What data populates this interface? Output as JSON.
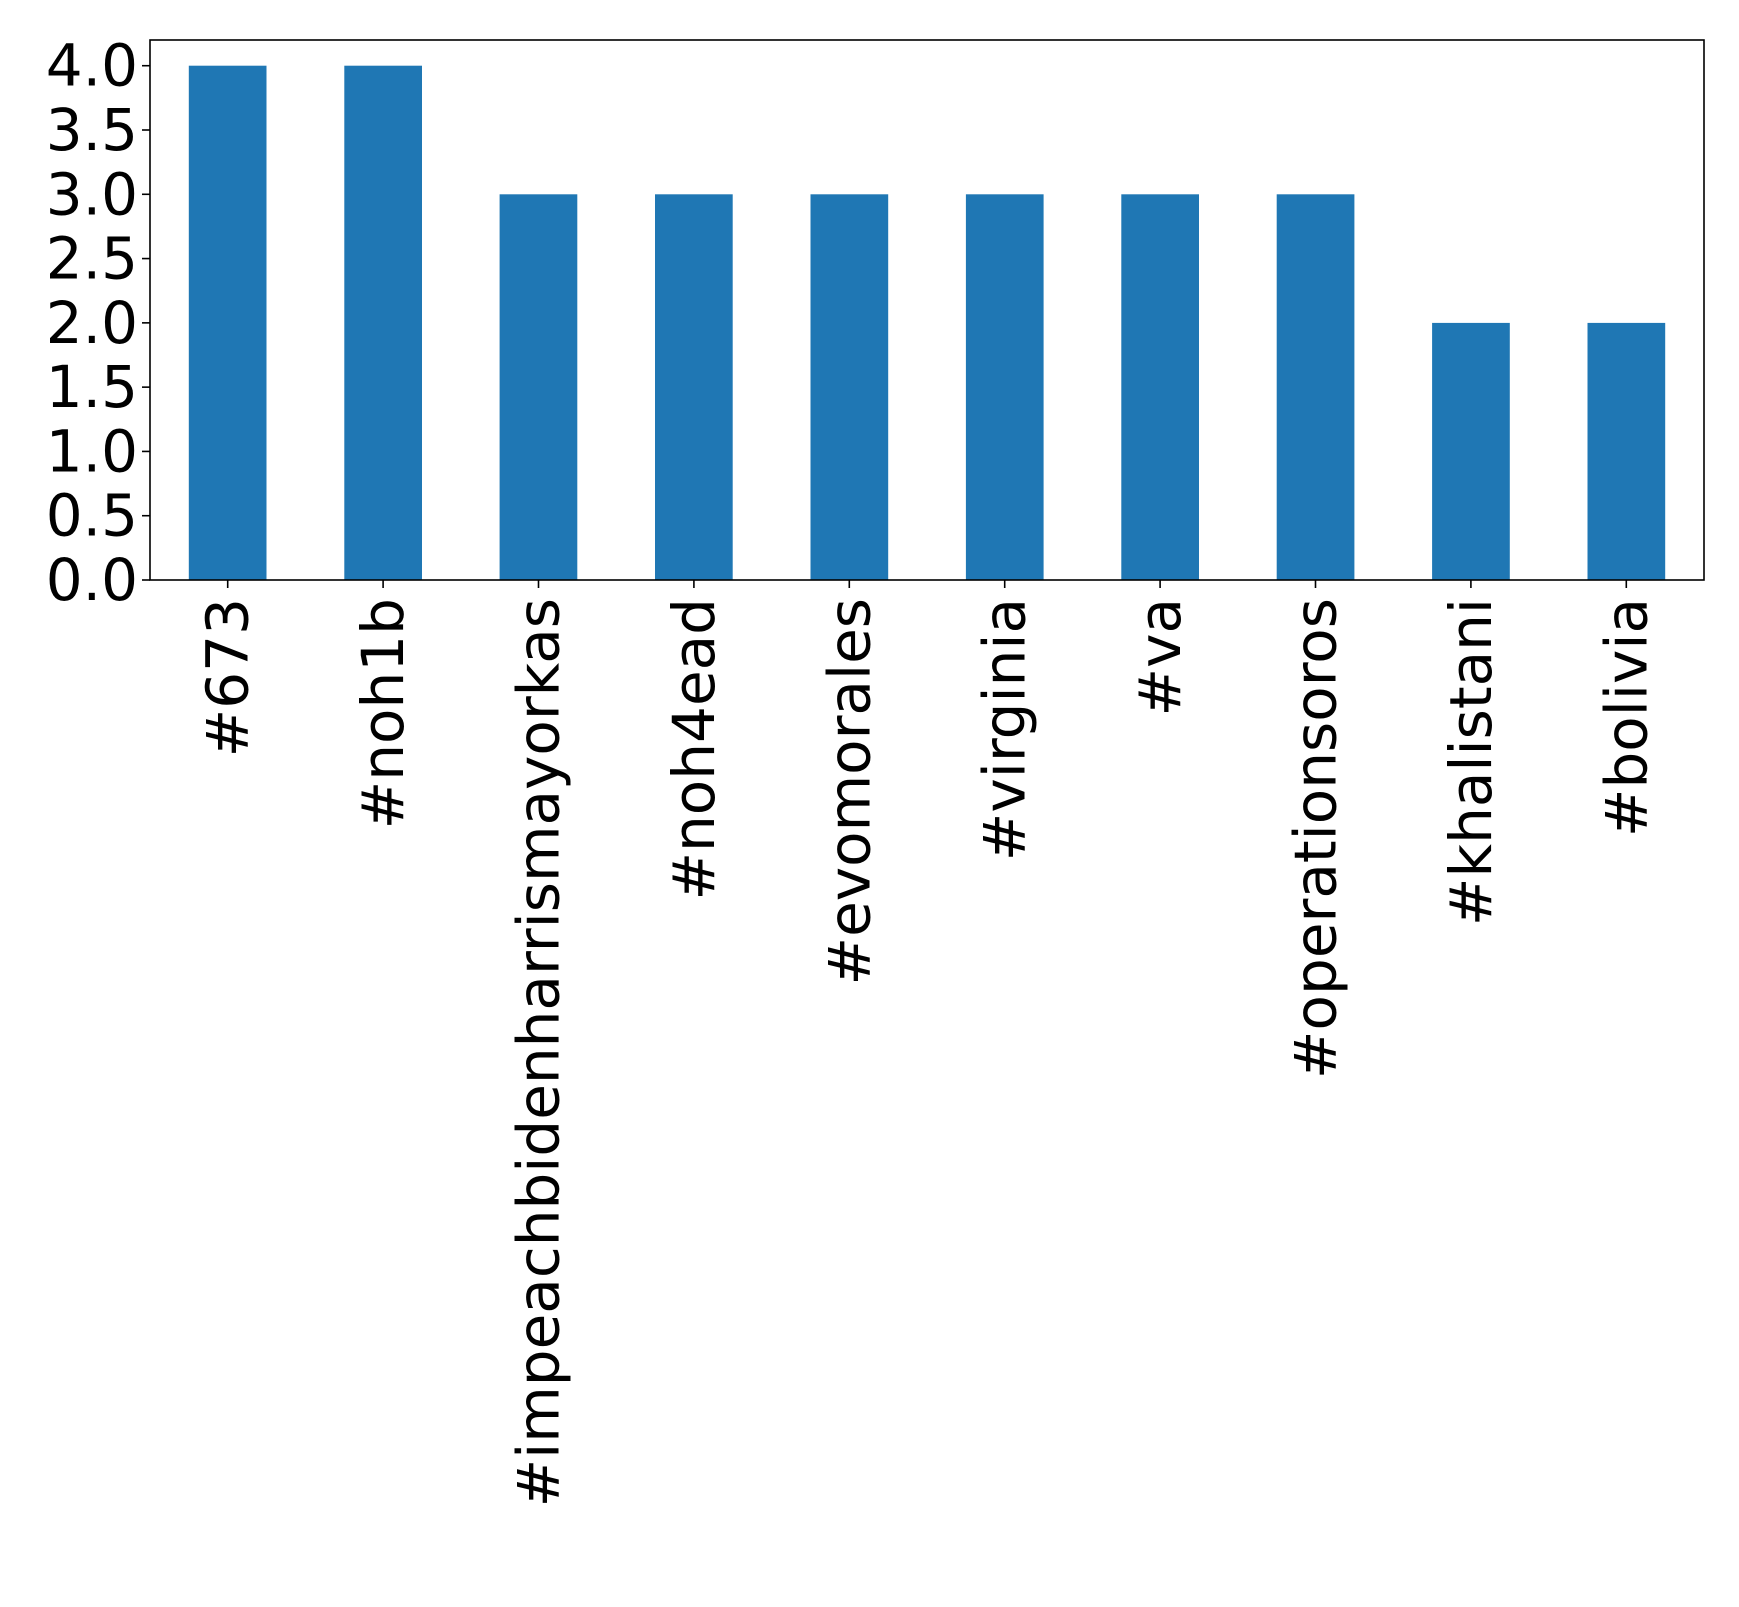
{
  "chart_data": {
    "type": "bar",
    "categories": [
      "#673",
      "#noh1b",
      "#impeachbidenharrismayorkas",
      "#noh4ead",
      "#evomorales",
      "#virginia",
      "#va",
      "#operationsoros",
      "#khalistani",
      "#bolivia"
    ],
    "values": [
      4,
      4,
      3,
      3,
      3,
      3,
      3,
      3,
      2,
      2
    ],
    "title": "",
    "xlabel": "",
    "ylabel": "",
    "ylim": [
      0,
      4.2
    ],
    "yticks": [
      "0.0",
      "0.5",
      "1.0",
      "1.5",
      "2.0",
      "2.5",
      "3.0",
      "3.5",
      "4.0"
    ],
    "grid": false,
    "bar_color": "#1f77b4"
  }
}
